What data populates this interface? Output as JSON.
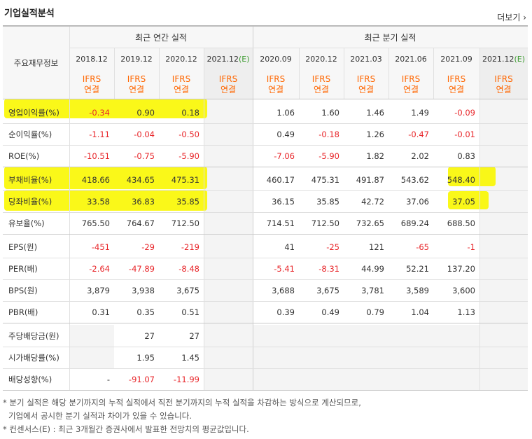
{
  "header": {
    "title": "기업실적분석",
    "more_label": "더보기"
  },
  "table": {
    "corner_label": "주요재무정보",
    "group_annual": "최근 연간 실적",
    "group_quarter": "최근 분기 실적",
    "annual_periods": [
      "2018.12",
      "2019.12",
      "2020.12",
      "2021.12"
    ],
    "annual_est_suffix": "(E)",
    "quarter_periods": [
      "2020.09",
      "2020.12",
      "2021.03",
      "2021.06",
      "2021.09",
      "2021.12"
    ],
    "quarter_est_suffix": "(E)",
    "basis_top": "IFRS",
    "basis_bottom": "연결",
    "rows": [
      {
        "label": "영업이익률(%)",
        "values": [
          "-0.34",
          "0.90",
          "0.18",
          "",
          "1.06",
          "1.60",
          "1.46",
          "1.49",
          "-0.09",
          ""
        ]
      },
      {
        "label": "순이익률(%)",
        "values": [
          "-1.11",
          "-0.04",
          "-0.50",
          "",
          "0.49",
          "-0.18",
          "1.26",
          "-0.47",
          "-0.01",
          ""
        ]
      },
      {
        "label": "ROE(%)",
        "values": [
          "-10.51",
          "-0.75",
          "-5.90",
          "",
          "-7.06",
          "-5.90",
          "1.82",
          "2.02",
          "0.83",
          ""
        ]
      },
      {
        "label": "부채비율(%)",
        "values": [
          "418.66",
          "434.65",
          "475.31",
          "",
          "460.17",
          "475.31",
          "491.87",
          "543.62",
          "548.40",
          ""
        ]
      },
      {
        "label": "당좌비율(%)",
        "values": [
          "33.58",
          "36.83",
          "35.85",
          "",
          "36.15",
          "35.85",
          "42.72",
          "37.06",
          "37.05",
          ""
        ]
      },
      {
        "label": "유보율(%)",
        "values": [
          "765.50",
          "764.67",
          "712.50",
          "",
          "714.51",
          "712.50",
          "732.65",
          "689.24",
          "688.50",
          ""
        ]
      },
      {
        "label": "EPS(원)",
        "values": [
          "-451",
          "-29",
          "-219",
          "",
          "41",
          "-25",
          "121",
          "-65",
          "-1",
          ""
        ]
      },
      {
        "label": "PER(배)",
        "values": [
          "-2.64",
          "-47.89",
          "-8.48",
          "",
          "-5.41",
          "-8.31",
          "44.99",
          "52.21",
          "137.20",
          ""
        ]
      },
      {
        "label": "BPS(원)",
        "values": [
          "3,879",
          "3,938",
          "3,675",
          "",
          "3,688",
          "3,675",
          "3,781",
          "3,589",
          "3,600",
          ""
        ]
      },
      {
        "label": "PBR(배)",
        "values": [
          "0.31",
          "0.35",
          "0.51",
          "",
          "0.39",
          "0.49",
          "0.79",
          "1.04",
          "1.13",
          ""
        ]
      },
      {
        "label": "주당배당금(원)",
        "values": [
          "",
          "27",
          "27",
          "",
          "",
          "",
          "",
          "",
          "",
          ""
        ]
      },
      {
        "label": "시가배당률(%)",
        "values": [
          "",
          "1.95",
          "1.45",
          "",
          "",
          "",
          "",
          "",
          "",
          ""
        ]
      },
      {
        "label": "배당성향(%)",
        "values": [
          "-",
          "-91.07",
          "-11.99",
          "",
          "",
          "",
          "",
          "",
          "",
          ""
        ]
      }
    ]
  },
  "notes": [
    "* 분기 실적은 해당 분기까지의 누적 실적에서 직전 분기까지의 누적 실적을 차감하는 방식으로 계산되므로,",
    "기업에서 공시한 분기 실적과 차이가 있을 수 있습니다.",
    "* 컨센서스(E) : 최근 3개월간 증권사에서 발표한 전망치의 평균값입니다."
  ],
  "colors": {
    "negative": "#e8262a",
    "ifrs": "#ff6600",
    "estimate": "#3a9a2e",
    "highlight": "#f9f700"
  }
}
